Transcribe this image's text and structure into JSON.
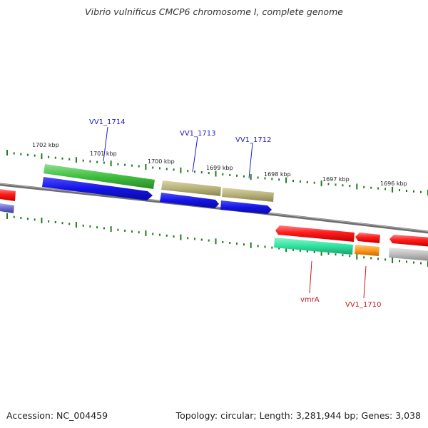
{
  "title": "Vibrio vulnificus CMCP6 chromosome I, complete genome",
  "accession_text": "Accession: NC_004459",
  "stats_text": "Topology: circular; Length: 3,281,944 bp; Genes: 3,038",
  "colors": {
    "backbone": "#8a8a8a",
    "ticks": "#1f7a1f",
    "red": "#ff1a1a",
    "blue": "#1414e6",
    "green": "#3fbf3f",
    "olive": "#b7b27a",
    "teal": "#2fe3a0",
    "orange": "#ff9a1a",
    "gray": "#bdbdbd",
    "purple": "#6a6ad0",
    "label_blue": "#1a1ad0",
    "label_red": "#cc1a1a"
  },
  "tick_labels": [
    {
      "text": "1702 kbp"
    },
    {
      "text": "1701 kbp"
    },
    {
      "text": "1700 kbp"
    },
    {
      "text": "1699 kbp"
    },
    {
      "text": "1698 kbp"
    },
    {
      "text": "1697 kbp"
    },
    {
      "text": "1696 kbp"
    }
  ],
  "gene_labels": [
    {
      "text": "VV1_1714",
      "color": "label_blue"
    },
    {
      "text": "VV1_1713",
      "color": "label_blue"
    },
    {
      "text": "VV1_1712",
      "color": "label_blue"
    },
    {
      "text": "vmrA",
      "color": "label_red"
    },
    {
      "text": "VV1_1710",
      "color": "label_red"
    }
  ]
}
